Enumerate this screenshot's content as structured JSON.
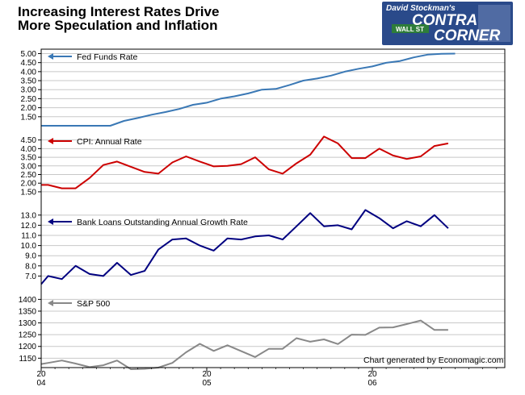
{
  "title_lines": [
    "Increasing Interest Rates Drive",
    "More Speculation and Inflation"
  ],
  "logo": {
    "small_text": "David Stockman's",
    "line1": "CONTRA",
    "line2": "CORNER",
    "street_sign": "WALL ST",
    "bg_color": "#2a4a8a"
  },
  "credit": "Chart generated by Economagic.com",
  "colors": {
    "fed_funds": "#3a78b5",
    "cpi": "#cc0000",
    "bank_loans": "#000080",
    "sp500": "#888888",
    "grid": "#c8c8c8",
    "frame": "#000000"
  },
  "chart_data": [
    {
      "type": "line",
      "name": "fed-funds",
      "legend": "Fed Funds Rate",
      "yticks": [
        "5.00",
        "4.50",
        "4.00",
        "3.50",
        "3.00",
        "2.50",
        "2.00",
        "1.50"
      ],
      "ylim": [
        1.0,
        5.2
      ],
      "x": [
        2004.0,
        2004.083,
        2004.167,
        2004.25,
        2004.333,
        2004.417,
        2004.5,
        2004.583,
        2004.667,
        2004.75,
        2004.833,
        2004.917,
        2005.0,
        2005.083,
        2005.167,
        2005.25,
        2005.333,
        2005.417,
        2005.5,
        2005.583,
        2005.667,
        2005.75,
        2005.833,
        2005.917,
        2006.0,
        2006.083,
        2006.167,
        2006.25,
        2006.333,
        2006.417,
        2006.5
      ],
      "values": [
        1.0,
        1.0,
        1.0,
        1.0,
        1.0,
        1.0,
        1.27,
        1.43,
        1.61,
        1.76,
        1.93,
        2.16,
        2.28,
        2.5,
        2.63,
        2.79,
        3.0,
        3.04,
        3.26,
        3.5,
        3.62,
        3.78,
        4.0,
        4.16,
        4.29,
        4.49,
        4.59,
        4.79,
        4.94,
        4.99,
        5.0
      ]
    },
    {
      "type": "line",
      "name": "cpi",
      "legend": "CPI: Annual Rate",
      "yticks": [
        "4.50",
        "4.00",
        "3.50",
        "3.00",
        "2.50",
        "2.00",
        "1.50"
      ],
      "ylim": [
        1.45,
        4.95
      ],
      "x": [
        2004.0,
        2004.042,
        2004.125,
        2004.208,
        2004.292,
        2004.375,
        2004.458,
        2004.542,
        2004.625,
        2004.708,
        2004.792,
        2004.875,
        2004.958,
        2005.042,
        2005.125,
        2005.208,
        2005.292,
        2005.375,
        2005.458,
        2005.542,
        2005.625,
        2005.708,
        2005.792,
        2005.875,
        2005.958,
        2006.042,
        2006.125,
        2006.208,
        2006.292,
        2006.375,
        2006.458
      ],
      "values": [
        1.9,
        1.9,
        1.7,
        1.7,
        2.3,
        3.05,
        3.25,
        2.95,
        2.65,
        2.55,
        3.2,
        3.55,
        3.25,
        2.97,
        3.0,
        3.1,
        3.5,
        2.8,
        2.55,
        3.15,
        3.65,
        4.7,
        4.3,
        3.45,
        3.45,
        4.0,
        3.6,
        3.4,
        3.55,
        4.15,
        4.3
      ]
    },
    {
      "type": "line",
      "name": "bank-loans",
      "legend": "Bank Loans Outstanding Annual Growth Rate",
      "yticks": [
        "13.0",
        "12.0",
        "11.0",
        "10.0",
        "9.0",
        "8.0",
        "7.0"
      ],
      "ylim": [
        6.0,
        13.7
      ],
      "x": [
        2004.0,
        2004.042,
        2004.125,
        2004.208,
        2004.292,
        2004.375,
        2004.458,
        2004.542,
        2004.625,
        2004.708,
        2004.792,
        2004.875,
        2004.958,
        2005.042,
        2005.125,
        2005.208,
        2005.292,
        2005.375,
        2005.458,
        2005.542,
        2005.625,
        2005.708,
        2005.792,
        2005.875,
        2005.958,
        2006.042,
        2006.125,
        2006.208,
        2006.292,
        2006.375,
        2006.458
      ],
      "values": [
        6.2,
        7.0,
        6.7,
        8.0,
        7.2,
        7.0,
        8.3,
        7.1,
        7.5,
        9.6,
        10.6,
        10.7,
        10.0,
        9.5,
        10.7,
        10.6,
        10.9,
        11.0,
        10.6,
        11.9,
        13.2,
        11.9,
        12.0,
        11.6,
        13.5,
        12.7,
        11.7,
        12.4,
        11.9,
        13.0,
        11.7
      ]
    },
    {
      "type": "line",
      "name": "sp500",
      "legend": "S&P 500",
      "yticks": [
        "1400",
        "1350",
        "1300",
        "1250",
        "1200",
        "1150"
      ],
      "ylim": [
        1110,
        1415
      ],
      "x": [
        2004.0,
        2004.042,
        2004.125,
        2004.208,
        2004.292,
        2004.375,
        2004.458,
        2004.542,
        2004.625,
        2004.708,
        2004.792,
        2004.875,
        2004.958,
        2005.042,
        2005.125,
        2005.208,
        2005.292,
        2005.375,
        2005.458,
        2005.542,
        2005.625,
        2005.708,
        2005.792,
        2005.875,
        2005.958,
        2006.042,
        2006.125,
        2006.208,
        2006.292,
        2006.375,
        2006.458
      ],
      "values": [
        1125,
        1130,
        1140,
        1127,
        1112,
        1120,
        1140,
        1103,
        1105,
        1110,
        1130,
        1175,
        1211,
        1181,
        1205,
        1180,
        1155,
        1190,
        1190,
        1235,
        1220,
        1230,
        1210,
        1250,
        1249,
        1280,
        1281,
        1295,
        1310,
        1270,
        1270
      ]
    }
  ],
  "xaxis": {
    "xlim": [
      2004.0,
      2006.8
    ],
    "ticks": [
      {
        "x": 2004.0,
        "top": "20",
        "bottom": "04"
      },
      {
        "x": 2005.0,
        "top": "20",
        "bottom": "05"
      },
      {
        "x": 2006.0,
        "top": "20",
        "bottom": "06"
      }
    ]
  }
}
